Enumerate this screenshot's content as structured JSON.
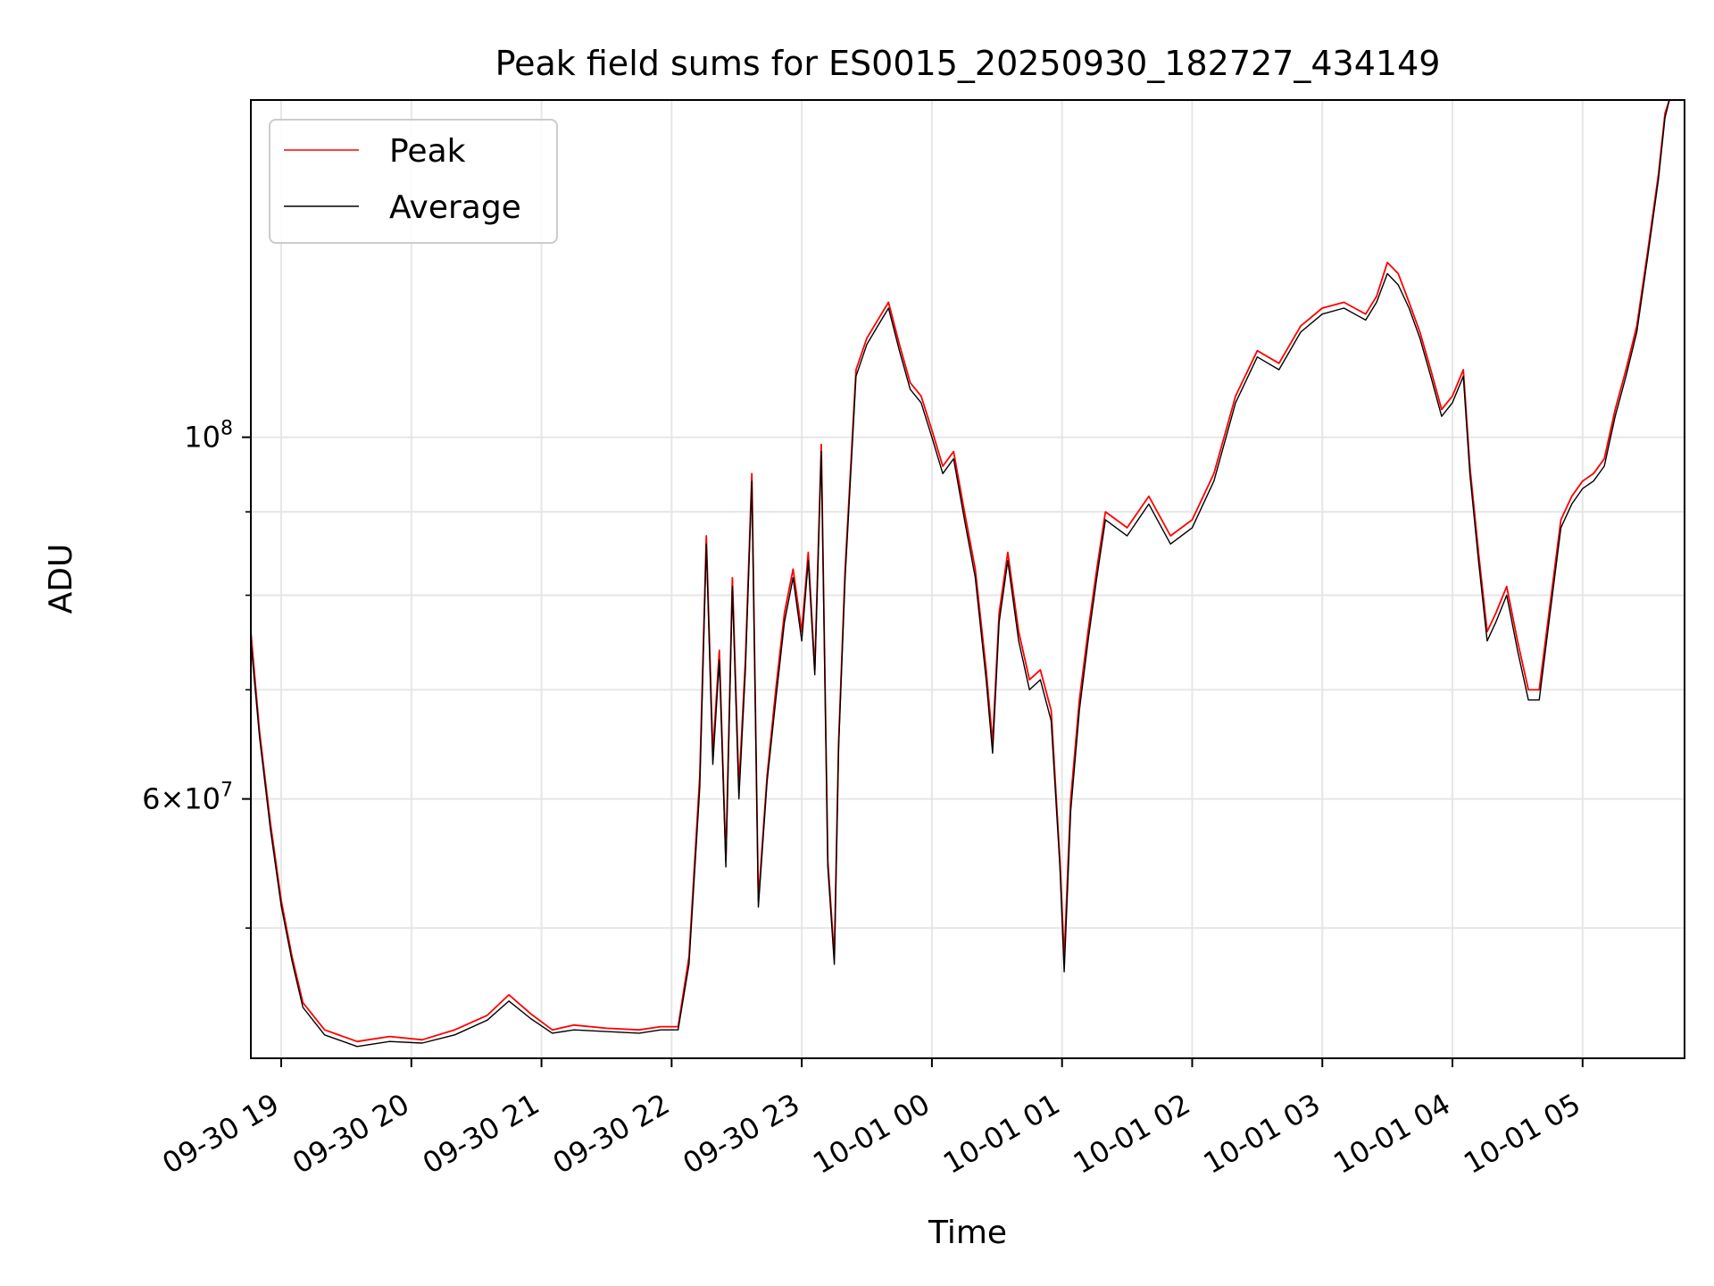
{
  "chart_data": {
    "type": "line",
    "title": "Peak field sums for ES0015_20250930_182727_434149",
    "xlabel": "Time",
    "ylabel": "ADU",
    "yscale": "log",
    "xlim": [
      "2025-09-30 18:46",
      "2025-10-01 05:47"
    ],
    "ylim": [
      41600000,
      161000000
    ],
    "x_ticks": [
      "09-30 19",
      "09-30 20",
      "09-30 21",
      "09-30 22",
      "09-30 23",
      "10-01 00",
      "10-01 01",
      "10-01 02",
      "10-01 03",
      "10-01 04",
      "10-01 05"
    ],
    "y_major_ticks": [
      {
        "value": 100000000,
        "label": "10^8"
      },
      {
        "value": 60000000,
        "label": "6×10^7"
      }
    ],
    "y_minor_ticks": [
      50000000,
      70000000,
      80000000,
      90000000
    ],
    "grid": true,
    "legend_position": "upper-left",
    "series": [
      {
        "name": "Peak",
        "color": "#ff0000",
        "x": [
          "2025-09-30 18:46",
          "2025-09-30 18:50",
          "2025-09-30 18:55",
          "2025-09-30 19:00",
          "2025-09-30 19:05",
          "2025-09-30 19:10",
          "2025-09-30 19:20",
          "2025-09-30 19:35",
          "2025-09-30 19:50",
          "2025-09-30 20:05",
          "2025-09-30 20:20",
          "2025-09-30 20:35",
          "2025-09-30 20:45",
          "2025-09-30 20:55",
          "2025-09-30 21:05",
          "2025-09-30 21:15",
          "2025-09-30 21:30",
          "2025-09-30 21:45",
          "2025-09-30 21:55",
          "2025-09-30 22:03",
          "2025-09-30 22:08",
          "2025-09-30 22:13",
          "2025-09-30 22:16",
          "2025-09-30 22:19",
          "2025-09-30 22:22",
          "2025-09-30 22:25",
          "2025-09-30 22:28",
          "2025-09-30 22:31",
          "2025-09-30 22:34",
          "2025-09-30 22:37",
          "2025-09-30 22:40",
          "2025-09-30 22:44",
          "2025-09-30 22:48",
          "2025-09-30 22:52",
          "2025-09-30 22:56",
          "2025-09-30 23:00",
          "2025-09-30 23:03",
          "2025-09-30 23:06",
          "2025-09-30 23:09",
          "2025-09-30 23:12",
          "2025-09-30 23:15",
          "2025-09-30 23:17",
          "2025-09-30 23:20",
          "2025-09-30 23:25",
          "2025-09-30 23:30",
          "2025-09-30 23:35",
          "2025-09-30 23:40",
          "2025-09-30 23:45",
          "2025-09-30 23:50",
          "2025-09-30 23:55",
          "2025-10-01 00:00",
          "2025-10-01 00:05",
          "2025-10-01 00:10",
          "2025-10-01 00:15",
          "2025-10-01 00:20",
          "2025-10-01 00:25",
          "2025-10-01 00:28",
          "2025-10-01 00:31",
          "2025-10-01 00:35",
          "2025-10-01 00:40",
          "2025-10-01 00:45",
          "2025-10-01 00:50",
          "2025-10-01 00:55",
          "2025-10-01 00:59",
          "2025-10-01 01:01",
          "2025-10-01 01:04",
          "2025-10-01 01:08",
          "2025-10-01 01:12",
          "2025-10-01 01:16",
          "2025-10-01 01:20",
          "2025-10-01 01:30",
          "2025-10-01 01:40",
          "2025-10-01 01:50",
          "2025-10-01 02:00",
          "2025-10-01 02:10",
          "2025-10-01 02:20",
          "2025-10-01 02:30",
          "2025-10-01 02:40",
          "2025-10-01 02:50",
          "2025-10-01 03:00",
          "2025-10-01 03:10",
          "2025-10-01 03:20",
          "2025-10-01 03:25",
          "2025-10-01 03:30",
          "2025-10-01 03:35",
          "2025-10-01 03:40",
          "2025-10-01 03:45",
          "2025-10-01 03:50",
          "2025-10-01 03:55",
          "2025-10-01 04:00",
          "2025-10-01 04:05",
          "2025-10-01 04:08",
          "2025-10-01 04:12",
          "2025-10-01 04:16",
          "2025-10-01 04:20",
          "2025-10-01 04:25",
          "2025-10-01 04:30",
          "2025-10-01 04:35",
          "2025-10-01 04:40",
          "2025-10-01 04:45",
          "2025-10-01 04:50",
          "2025-10-01 04:55",
          "2025-10-01 05:00",
          "2025-10-01 05:05",
          "2025-10-01 05:10",
          "2025-10-01 05:15",
          "2025-10-01 05:20",
          "2025-10-01 05:25",
          "2025-10-01 05:30",
          "2025-10-01 05:35",
          "2025-10-01 05:38",
          "2025-10-01 05:40",
          "2025-10-01 05:45",
          "2025-10-01 05:47"
        ],
        "y": [
          76000000,
          66000000,
          58000000,
          52000000,
          48000000,
          45000000,
          43300000,
          42600000,
          42900000,
          42700000,
          43300000,
          44200000,
          45500000,
          44300000,
          43300000,
          43600000,
          43400000,
          43300000,
          43500000,
          43500000,
          48000000,
          62000000,
          87000000,
          64000000,
          74000000,
          55000000,
          82000000,
          61000000,
          73000000,
          95000000,
          52000000,
          62000000,
          70000000,
          78000000,
          83000000,
          76000000,
          85000000,
          72000000,
          99000000,
          55000000,
          48000000,
          65000000,
          83000000,
          110000000,
          115000000,
          118000000,
          121000000,
          114000000,
          108000000,
          106000000,
          101000000,
          96000000,
          98000000,
          90000000,
          83000000,
          72000000,
          65000000,
          78000000,
          85000000,
          76000000,
          71000000,
          72000000,
          68000000,
          55000000,
          48000000,
          60000000,
          69000000,
          76000000,
          83000000,
          90000000,
          88000000,
          92000000,
          87000000,
          89000000,
          95000000,
          106000000,
          113000000,
          111000000,
          117000000,
          120000000,
          121000000,
          119000000,
          122000000,
          128000000,
          126000000,
          121000000,
          116000000,
          110000000,
          104000000,
          106000000,
          110000000,
          96000000,
          85000000,
          76000000,
          78000000,
          81000000,
          75000000,
          70000000,
          70000000,
          79000000,
          89000000,
          92000000,
          94000000,
          95000000,
          97000000,
          104000000,
          110000000,
          117000000,
          130000000,
          145000000,
          158000000,
          161000000,
          161000000,
          161000000
        ]
      },
      {
        "name": "Average",
        "color": "#000000",
        "x": [
          "2025-09-30 18:46",
          "2025-09-30 18:50",
          "2025-09-30 18:55",
          "2025-09-30 19:00",
          "2025-09-30 19:05",
          "2025-09-30 19:10",
          "2025-09-30 19:20",
          "2025-09-30 19:35",
          "2025-09-30 19:50",
          "2025-09-30 20:05",
          "2025-09-30 20:20",
          "2025-09-30 20:35",
          "2025-09-30 20:45",
          "2025-09-30 20:55",
          "2025-09-30 21:05",
          "2025-09-30 21:15",
          "2025-09-30 21:30",
          "2025-09-30 21:45",
          "2025-09-30 21:55",
          "2025-09-30 22:03",
          "2025-09-30 22:08",
          "2025-09-30 22:13",
          "2025-09-30 22:16",
          "2025-09-30 22:19",
          "2025-09-30 22:22",
          "2025-09-30 22:25",
          "2025-09-30 22:28",
          "2025-09-30 22:31",
          "2025-09-30 22:34",
          "2025-09-30 22:37",
          "2025-09-30 22:40",
          "2025-09-30 22:44",
          "2025-09-30 22:48",
          "2025-09-30 22:52",
          "2025-09-30 22:56",
          "2025-09-30 23:00",
          "2025-09-30 23:03",
          "2025-09-30 23:06",
          "2025-09-30 23:09",
          "2025-09-30 23:12",
          "2025-09-30 23:15",
          "2025-09-30 23:17",
          "2025-09-30 23:20",
          "2025-09-30 23:25",
          "2025-09-30 23:30",
          "2025-09-30 23:35",
          "2025-09-30 23:40",
          "2025-09-30 23:45",
          "2025-09-30 23:50",
          "2025-09-30 23:55",
          "2025-10-01 00:00",
          "2025-10-01 00:05",
          "2025-10-01 00:10",
          "2025-10-01 00:15",
          "2025-10-01 00:20",
          "2025-10-01 00:25",
          "2025-10-01 00:28",
          "2025-10-01 00:31",
          "2025-10-01 00:35",
          "2025-10-01 00:40",
          "2025-10-01 00:45",
          "2025-10-01 00:50",
          "2025-10-01 00:55",
          "2025-10-01 00:59",
          "2025-10-01 01:01",
          "2025-10-01 01:04",
          "2025-10-01 01:08",
          "2025-10-01 01:12",
          "2025-10-01 01:16",
          "2025-10-01 01:20",
          "2025-10-01 01:30",
          "2025-10-01 01:40",
          "2025-10-01 01:50",
          "2025-10-01 02:00",
          "2025-10-01 02:10",
          "2025-10-01 02:20",
          "2025-10-01 02:30",
          "2025-10-01 02:40",
          "2025-10-01 02:50",
          "2025-10-01 03:00",
          "2025-10-01 03:10",
          "2025-10-01 03:20",
          "2025-10-01 03:25",
          "2025-10-01 03:30",
          "2025-10-01 03:35",
          "2025-10-01 03:40",
          "2025-10-01 03:45",
          "2025-10-01 03:50",
          "2025-10-01 03:55",
          "2025-10-01 04:00",
          "2025-10-01 04:05",
          "2025-10-01 04:08",
          "2025-10-01 04:12",
          "2025-10-01 04:16",
          "2025-10-01 04:20",
          "2025-10-01 04:25",
          "2025-10-01 04:30",
          "2025-10-01 04:35",
          "2025-10-01 04:40",
          "2025-10-01 04:45",
          "2025-10-01 04:50",
          "2025-10-01 04:55",
          "2025-10-01 05:00",
          "2025-10-01 05:05",
          "2025-10-01 05:10",
          "2025-10-01 05:15",
          "2025-10-01 05:20",
          "2025-10-01 05:25",
          "2025-10-01 05:30",
          "2025-10-01 05:35",
          "2025-10-01 05:38",
          "2025-10-01 05:40",
          "2025-10-01 05:45",
          "2025-10-01 05:47"
        ],
        "y": [
          75000000,
          65500000,
          57500000,
          51600000,
          47700000,
          44700000,
          43000000,
          42300000,
          42600000,
          42500000,
          43000000,
          43900000,
          45100000,
          44000000,
          43100000,
          43300000,
          43200000,
          43100000,
          43300000,
          43300000,
          47500000,
          61000000,
          86000000,
          63000000,
          73000000,
          54500000,
          81000000,
          60000000,
          72000000,
          94000000,
          51500000,
          61500000,
          69000000,
          77000000,
          82000000,
          75000000,
          84000000,
          71500000,
          98000000,
          54500000,
          47500000,
          64500000,
          82000000,
          109000000,
          114000000,
          117000000,
          120000000,
          113000000,
          107000000,
          105000000,
          100000000,
          95000000,
          97000000,
          89000000,
          82000000,
          71000000,
          64000000,
          77000000,
          84000000,
          75000000,
          70000000,
          71000000,
          67000000,
          54500000,
          47000000,
          59000000,
          68000000,
          75000000,
          82000000,
          89000000,
          87000000,
          91000000,
          86000000,
          88000000,
          94000000,
          105000000,
          112000000,
          110000000,
          116000000,
          119000000,
          120000000,
          118000000,
          121000000,
          126000000,
          124000000,
          120000000,
          115000000,
          109000000,
          103000000,
          105000000,
          109000000,
          95000000,
          84000000,
          75000000,
          77000000,
          80000000,
          74000000,
          69000000,
          69000000,
          78000000,
          88000000,
          91000000,
          93000000,
          94000000,
          96000000,
          103000000,
          109000000,
          116000000,
          129000000,
          144000000,
          157000000,
          161000000,
          161000000,
          161000000
        ]
      }
    ]
  }
}
